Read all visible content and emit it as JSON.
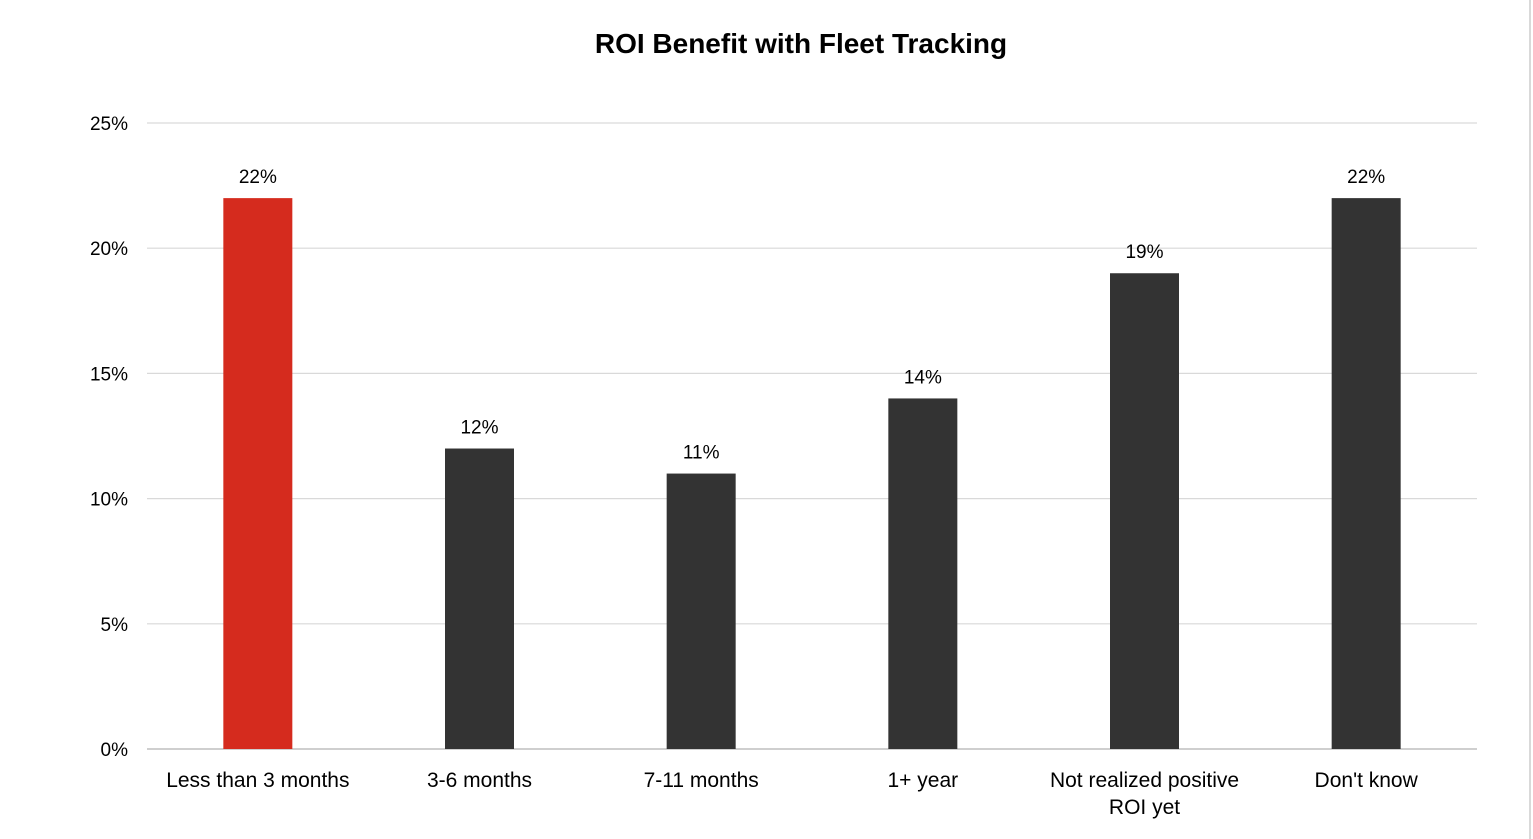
{
  "chart_data": {
    "type": "bar",
    "title": "ROI Benefit with Fleet Tracking",
    "xlabel": "",
    "ylabel": "",
    "categories": [
      "Less than 3 months",
      "3-6 months",
      "7-11 months",
      "1+ year",
      "Not realized positive ROI yet",
      "Don't know"
    ],
    "category_lines": [
      [
        "Less than 3 months"
      ],
      [
        "3-6 months"
      ],
      [
        "7-11 months"
      ],
      [
        "1+ year"
      ],
      [
        "Not realized positive",
        "ROI yet"
      ],
      [
        "Don't know"
      ]
    ],
    "values": [
      22,
      12,
      11,
      14,
      19,
      22
    ],
    "data_labels": [
      "22%",
      "12%",
      "11%",
      "14%",
      "19%",
      "22%"
    ],
    "ylim": [
      0,
      25
    ],
    "yticks": [
      0,
      5,
      10,
      15,
      20,
      25
    ],
    "ytick_labels": [
      "0%",
      "5%",
      "10%",
      "15%",
      "20%",
      "25%"
    ],
    "grid": true,
    "legend": "none",
    "colors": {
      "highlight": "#d52b1e",
      "default": "#333333",
      "grid": "#d9d9d9",
      "text": "#000000"
    },
    "highlight_index": 0
  }
}
